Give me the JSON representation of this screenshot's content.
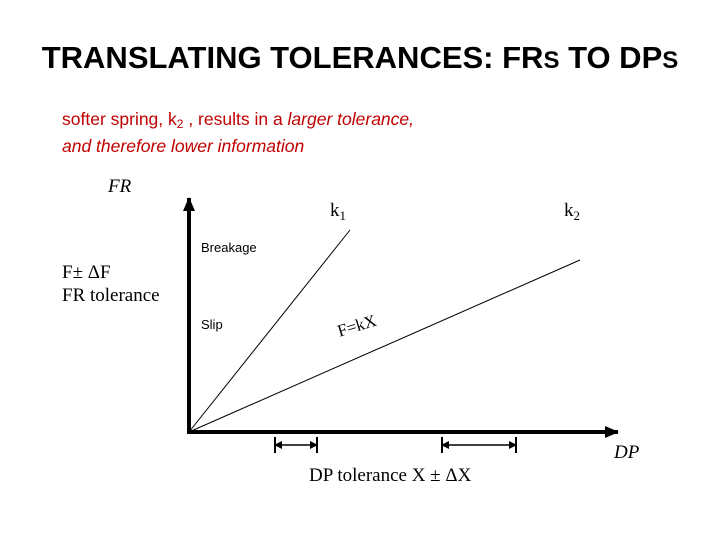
{
  "slide": {
    "title_main": "TRANSLATING TOLERANCES: FR",
    "title_s1": "S",
    "title_mid": " TO DP",
    "title_s2": "S",
    "subtitle_line1_prefix": "softer spring, k",
    "subtitle_line1_sub": "2",
    "subtitle_line1_mid": " , results in a ",
    "subtitle_line1_italic": "larger tolerance,",
    "subtitle_line2": "and therefore lower information"
  },
  "diagram": {
    "y_axis_label": "FR",
    "x_axis_label": "DP",
    "k1_base": "k",
    "k1_sub": "1",
    "k2_base": "k",
    "k2_sub": "2",
    "breakage_label": "Breakage",
    "slip_label": "Slip",
    "fr_tol_line1": "F± ΔF",
    "fr_tol_line2": "FR tolerance",
    "equation": "F=kX",
    "dp_tolerance": "DP tolerance X ± ΔX"
  }
}
